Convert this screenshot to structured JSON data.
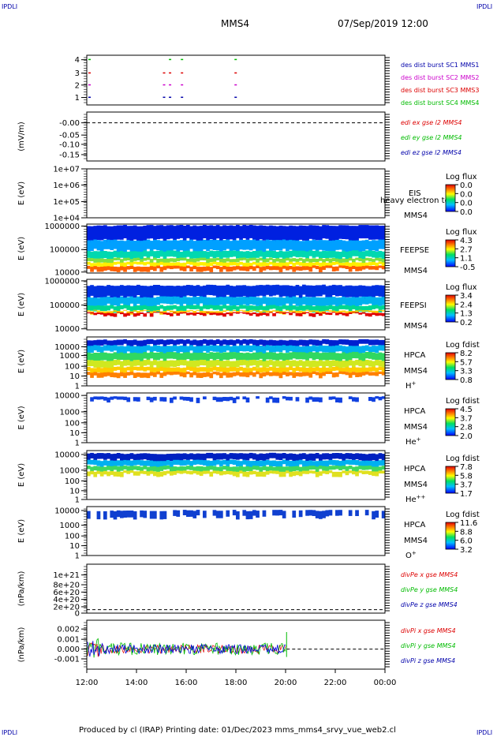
{
  "corners": {
    "tl": "IPDLI",
    "tr": "IPDLI",
    "bl": "IPDLI",
    "br": "IPDLI"
  },
  "header": {
    "spacecraft": "MMS4",
    "datetime": "07/Sep/2019 12:00"
  },
  "footer": {
    "text": "Produced by cl (IRAP)   Printing date: 01/Dec/2023   mms_mms4_srvy_vue_web2.cl"
  },
  "colors": {
    "red": "#dd0000",
    "green": "#00bb00",
    "blue": "#0000aa",
    "magenta": "#cc00cc"
  },
  "chart_data": [
    {
      "id": "burst",
      "type": "scatter",
      "yticks": [
        "4",
        "3",
        "2",
        "1"
      ],
      "legend": [
        {
          "text": "des dist burst SC1 MMS1",
          "color": "#0000aa"
        },
        {
          "text": "des dist burst SC2 MMS2",
          "color": "#cc00cc"
        },
        {
          "text": "des dist burst SC3 MMS3",
          "color": "#dd0000"
        },
        {
          "text": "des dist burst SC4 MMS4",
          "color": "#00bb00"
        }
      ]
    },
    {
      "id": "edi",
      "type": "line",
      "ylabel": "(mV/m)",
      "yticks": [
        "-0.00",
        "-0.05",
        "-0.10",
        "-0.15"
      ],
      "legend": [
        {
          "text": "edi ex gse l2 MMS4",
          "color": "#dd0000"
        },
        {
          "text": "edi ey gse l2 MMS4",
          "color": "#00bb00"
        },
        {
          "text": "edi ez gse l2 MMS4",
          "color": "#0000aa"
        }
      ]
    },
    {
      "id": "eis",
      "type": "heatmap",
      "ylabel": "E (eV)",
      "yticks": [
        "1e+07",
        "1e+06",
        "1e+05",
        "1e+04"
      ],
      "labels": [
        "EIS",
        "heavy electron to",
        "MMS4"
      ],
      "colorbar": {
        "title": "Log flux",
        "ticks": [
          "0.0",
          "0.0",
          "0.0",
          "0.0"
        ]
      }
    },
    {
      "id": "feepse",
      "type": "heatmap",
      "ylabel": "E (eV)",
      "yticks": [
        "1000000",
        "100000",
        "10000"
      ],
      "labels": [
        "FEEPSE",
        "MMS4"
      ],
      "colorbar": {
        "title": "Log flux",
        "ticks": [
          "4.3",
          "2.7",
          "1.1",
          "-0.5"
        ]
      }
    },
    {
      "id": "feepsi",
      "type": "heatmap",
      "ylabel": "E (eV)",
      "yticks": [
        "1000000",
        "100000",
        "10000"
      ],
      "labels": [
        "FEEPSI",
        "MMS4"
      ],
      "colorbar": {
        "title": "Log flux",
        "ticks": [
          "3.4",
          "2.4",
          "1.3",
          "0.2"
        ]
      }
    },
    {
      "id": "hpca_h",
      "type": "heatmap",
      "ylabel": "E (eV)",
      "yticks": [
        "10000",
        "1000",
        "100",
        "10",
        "1"
      ],
      "labels": [
        "HPCA",
        "MMS4"
      ],
      "species": "H",
      "charge": "+",
      "colorbar": {
        "title": "Log fdist",
        "ticks": [
          "8.2",
          "5.7",
          "3.3",
          "0.8"
        ]
      }
    },
    {
      "id": "hpca_he",
      "type": "heatmap",
      "ylabel": "E (eV)",
      "yticks": [
        "10000",
        "1000",
        "100",
        "10",
        "1"
      ],
      "labels": [
        "HPCA",
        "MMS4"
      ],
      "species": "He",
      "charge": "+",
      "colorbar": {
        "title": "Log fdist",
        "ticks": [
          "4.5",
          "3.7",
          "2.8",
          "2.0"
        ]
      }
    },
    {
      "id": "hpca_hepp",
      "type": "heatmap",
      "ylabel": "E (eV)",
      "yticks": [
        "10000",
        "1000",
        "100",
        "10",
        "1"
      ],
      "labels": [
        "HPCA",
        "MMS4"
      ],
      "species": "He",
      "charge": "++",
      "colorbar": {
        "title": "Log fdist",
        "ticks": [
          "7.8",
          "5.8",
          "3.7",
          "1.7"
        ]
      }
    },
    {
      "id": "hpca_o",
      "type": "heatmap",
      "ylabel": "E (eV)",
      "yticks": [
        "10000",
        "1000",
        "100",
        "10",
        "1"
      ],
      "labels": [
        "HPCA",
        "MMS4"
      ],
      "species": "O",
      "charge": "+",
      "colorbar": {
        "title": "Log fdist",
        "ticks": [
          "11.6",
          "8.8",
          "6.0",
          "3.2"
        ]
      }
    },
    {
      "id": "divpe",
      "type": "line",
      "ylabel": "(nPa/km)",
      "yticks": [
        "1e+21",
        "8e+20",
        "6e+20",
        "4e+20",
        "2e+20",
        "0"
      ],
      "legend": [
        {
          "text": "divPe x gse MMS4",
          "color": "#dd0000"
        },
        {
          "text": "divPe y gse MMS4",
          "color": "#00bb00"
        },
        {
          "text": "divPe z gse MMS4",
          "color": "#0000aa"
        }
      ]
    },
    {
      "id": "divpi",
      "type": "line",
      "ylabel": "(nPa/km)",
      "yticks": [
        "0.002",
        "0.001",
        "0.000",
        "-0.001"
      ],
      "legend": [
        {
          "text": "divPi x gse MMS4",
          "color": "#dd0000"
        },
        {
          "text": "divPi y gse MMS4",
          "color": "#00bb00"
        },
        {
          "text": "divPi z gse MMS4",
          "color": "#0000aa"
        }
      ]
    }
  ],
  "xaxis": {
    "ticks": [
      "12:00",
      "14:00",
      "16:00",
      "18:00",
      "20:00",
      "22:00",
      "00:00"
    ]
  }
}
